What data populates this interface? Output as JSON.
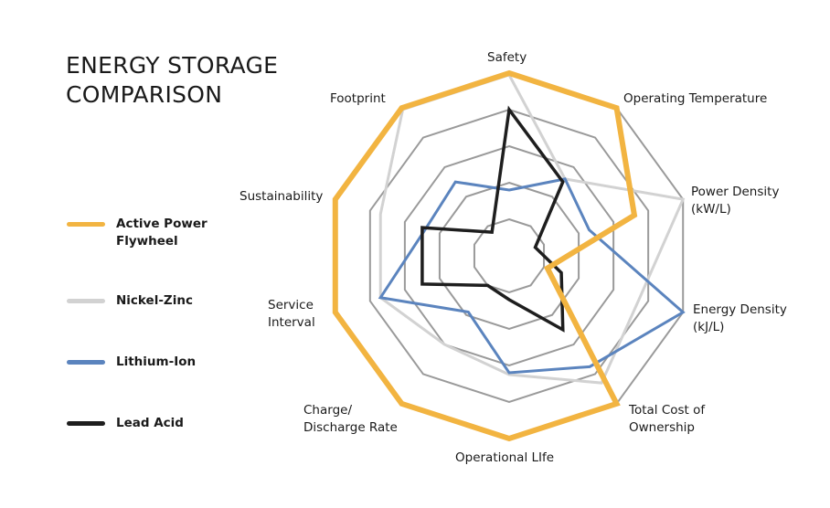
{
  "chart_data": {
    "type": "radar",
    "title": [
      "ENERGY STORAGE",
      "COMPARISON"
    ],
    "axes": [
      [
        "Safety"
      ],
      [
        "Operating Temperature"
      ],
      [
        "Power Density",
        "(kW/L)"
      ],
      [
        "Energy Density",
        "(kJ/L)"
      ],
      [
        "Total Cost of",
        "Ownership"
      ],
      [
        "Operational LIfe"
      ],
      [
        "Charge/",
        "Discharge Rate"
      ],
      [
        "Service",
        "Interval"
      ],
      [
        "Sustainability"
      ],
      [
        "Footprint"
      ]
    ],
    "scale": {
      "min": 0,
      "max": 5,
      "rings": 5
    },
    "series": [
      {
        "name": [
          "Active Power",
          "Flywheel"
        ],
        "color": "#F2B441",
        "values": [
          5,
          5,
          3.6,
          1.1,
          5,
          5,
          5,
          5,
          5,
          5
        ]
      },
      {
        "name": [
          "Nickel-Zinc"
        ],
        "color": "#D2D2D2",
        "values": [
          4.95,
          2.6,
          5,
          3.75,
          4.3,
          3.25,
          3.0,
          3.7,
          3.7,
          4.95
        ]
      },
      {
        "name": [
          "Lithium-Ion"
        ],
        "color": "#5B84BE",
        "values": [
          1.8,
          2.6,
          2.3,
          5,
          3.75,
          3.2,
          1.9,
          3.7,
          2.4,
          2.5
        ]
      },
      {
        "name": [
          "Lead Acid"
        ],
        "color": "#1E1E1E",
        "values": [
          4.0,
          2.5,
          0.75,
          1.5,
          2.5,
          1.2,
          1.0,
          2.5,
          2.5,
          0.8
        ]
      }
    ],
    "grid_color": "#9A9A9A",
    "legend": "left"
  }
}
